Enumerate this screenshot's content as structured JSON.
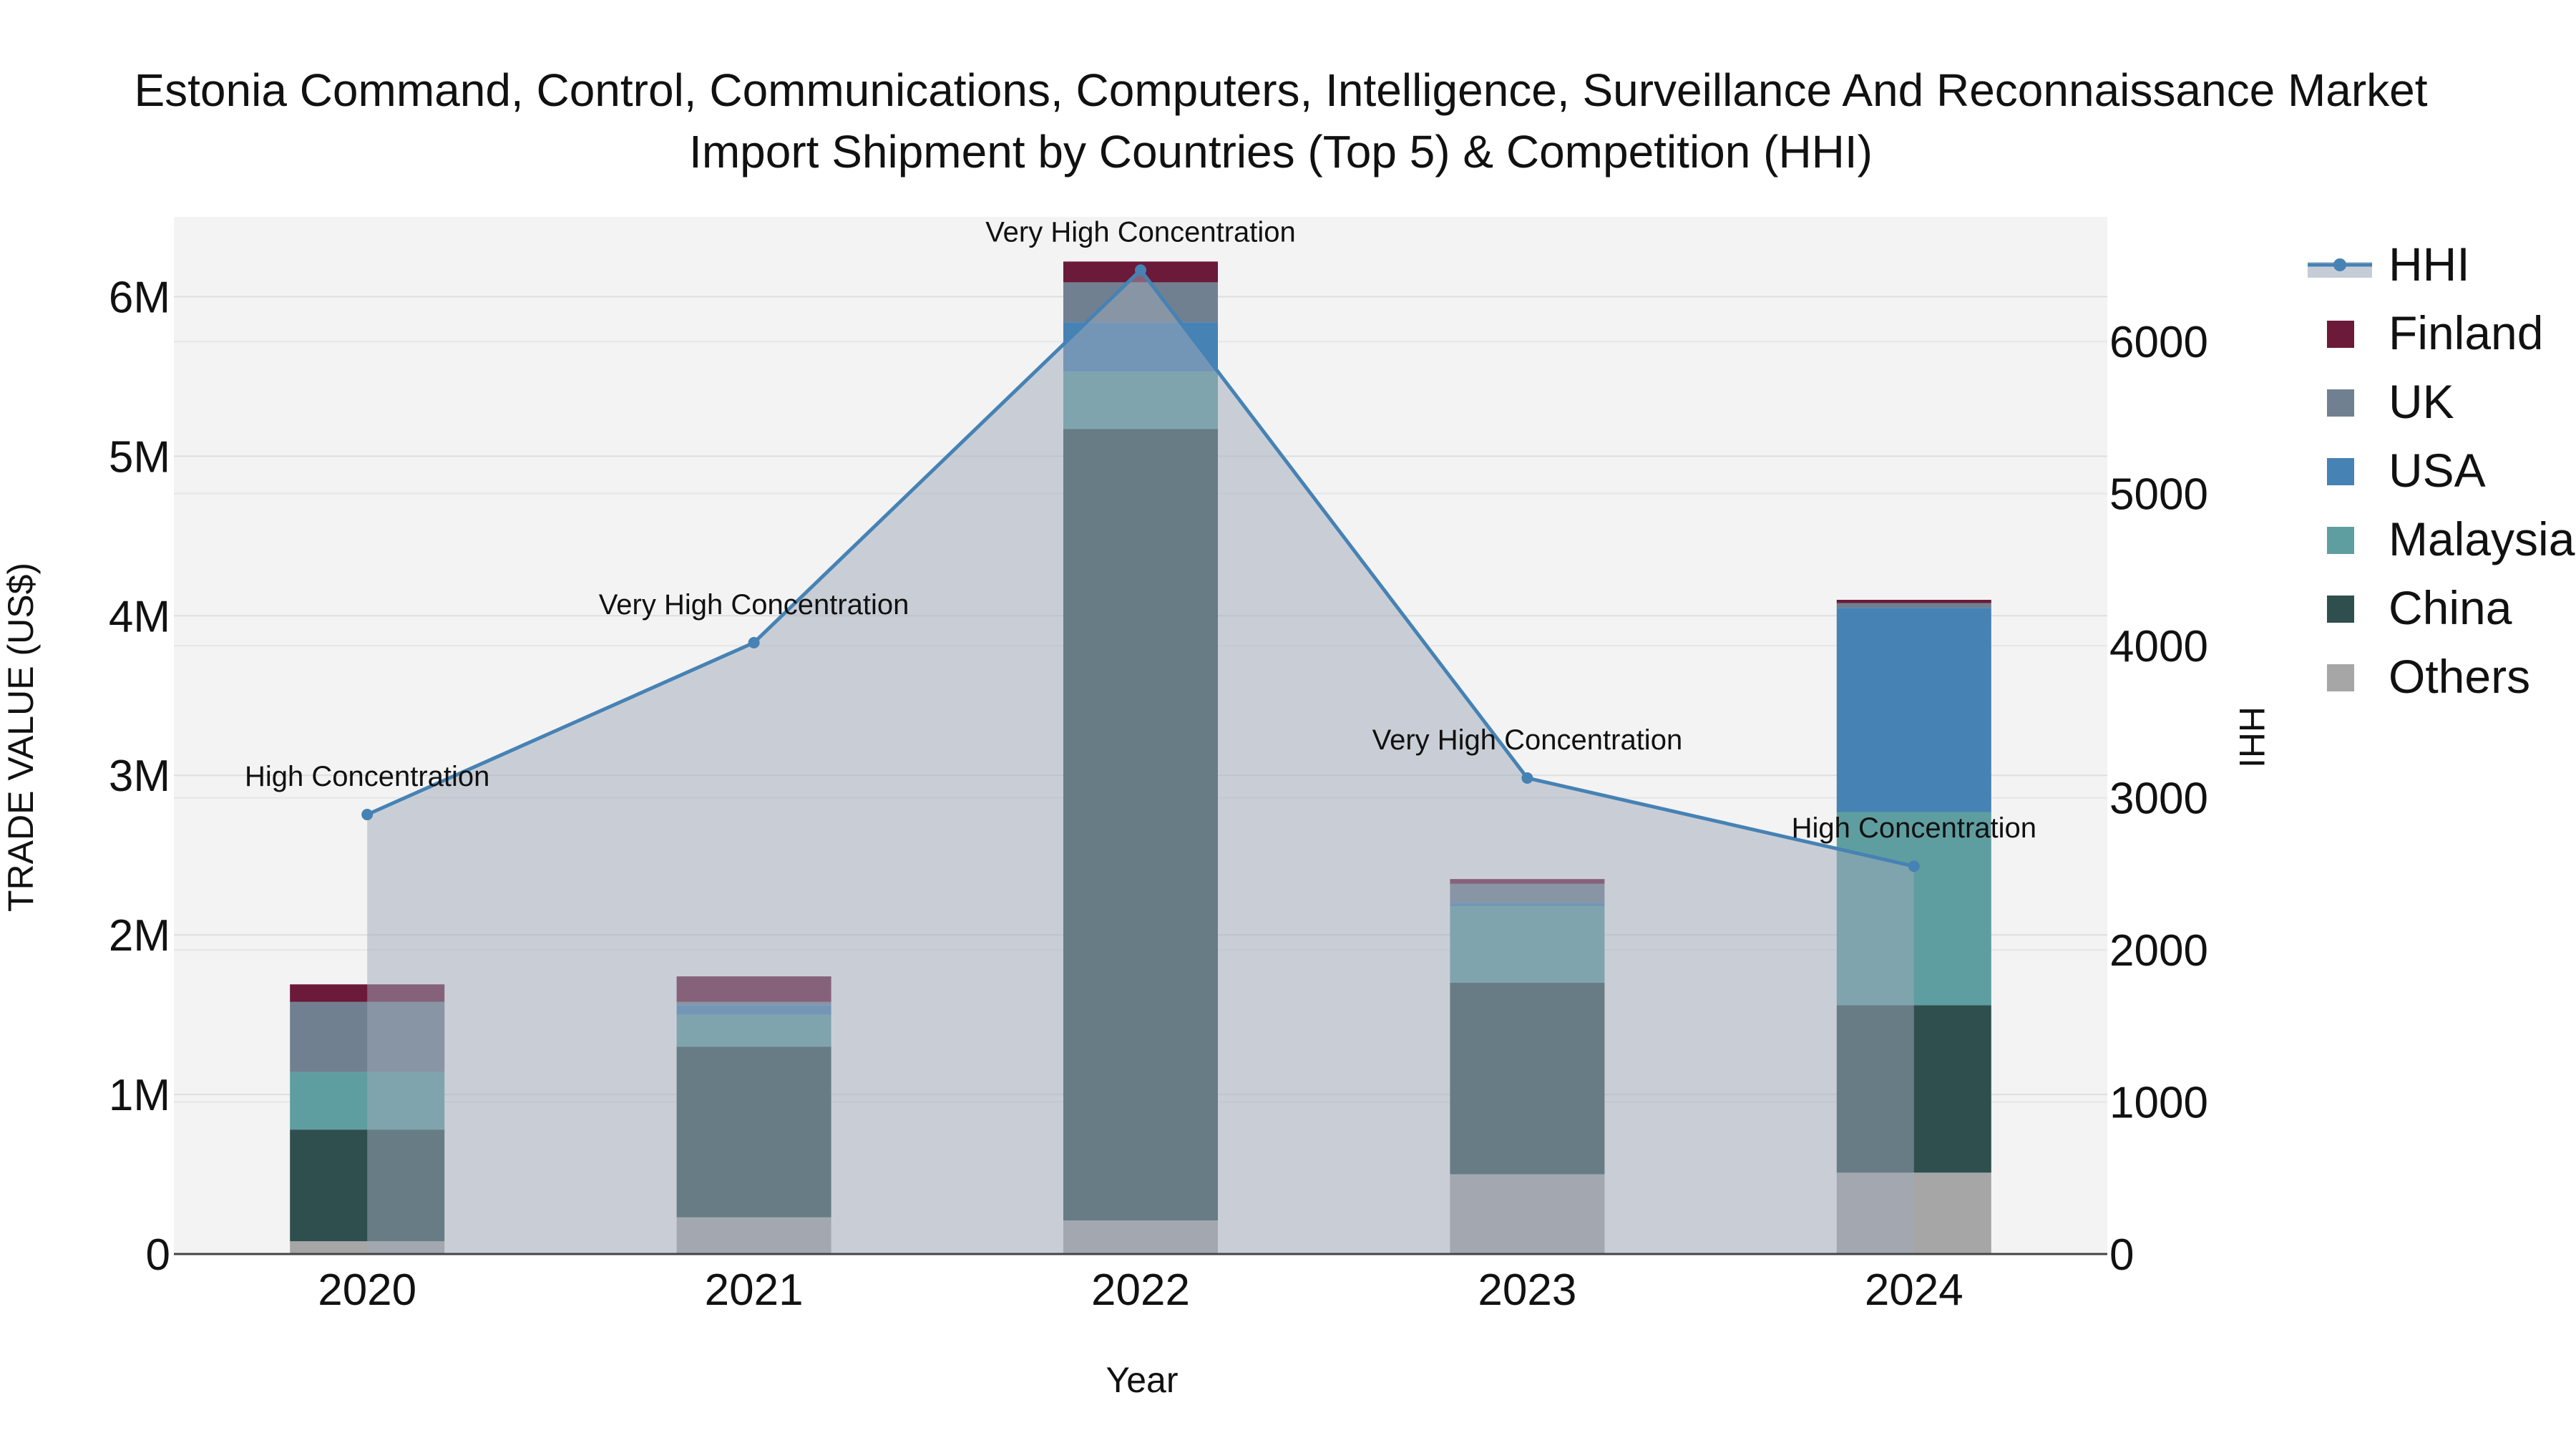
{
  "chart_data": {
    "type": "bar",
    "stacked": true,
    "title_lines": [
      "Estonia Command, Control, Communications, Computers, Intelligence, Surveillance And Reconnaissance Market",
      "Import Shipment by Countries (Top 5) & Competition (HHI)"
    ],
    "xlabel": "Year",
    "ylabel": "TRADE VALUE (US$)",
    "y2label": "HHI",
    "categories": [
      "2020",
      "2021",
      "2022",
      "2023",
      "2024"
    ],
    "ylim": [
      0,
      6500000
    ],
    "y_ticks": [
      0,
      1000000,
      2000000,
      3000000,
      4000000,
      5000000,
      6000000
    ],
    "y_tick_labels": [
      "0",
      "1M",
      "2M",
      "3M",
      "4M",
      "5M",
      "6M"
    ],
    "y2lim": [
      0,
      6820
    ],
    "y2_ticks": [
      0,
      1000,
      2000,
      3000,
      4000,
      5000,
      6000
    ],
    "y2_tick_labels": [
      "0",
      "1000",
      "2000",
      "3000",
      "4000",
      "5000",
      "6000"
    ],
    "series": [
      {
        "name": "Others",
        "color": "#a6a6a6",
        "values": [
          80000,
          230000,
          210000,
          500000,
          510000
        ]
      },
      {
        "name": "China",
        "color": "#2f4f4f",
        "values": [
          700000,
          1070000,
          4960000,
          1200000,
          1050000
        ]
      },
      {
        "name": "Malaysia",
        "color": "#5f9ea0",
        "values": [
          360000,
          200000,
          360000,
          480000,
          1210000
        ]
      },
      {
        "name": "USA",
        "color": "#4682b4",
        "values": [
          0,
          60000,
          310000,
          20000,
          1280000
        ]
      },
      {
        "name": "UK",
        "color": "#708090",
        "values": [
          440000,
          20000,
          250000,
          120000,
          30000
        ]
      },
      {
        "name": "Finland",
        "color": "#6b1a3a",
        "values": [
          110000,
          160000,
          130000,
          30000,
          20000
        ]
      }
    ],
    "hhi": {
      "name": "HHI",
      "color": "#4682b4",
      "values": [
        2890,
        4020,
        6470,
        3130,
        2550
      ],
      "annotations": [
        "High Concentration",
        "Very High Concentration",
        "Very High Concentration",
        "Very High Concentration",
        "High Concentration"
      ]
    },
    "legend": {
      "placement": "right",
      "items": [
        "HHI",
        "Finland",
        "UK",
        "USA",
        "Malaysia",
        "China",
        "Others"
      ]
    }
  }
}
